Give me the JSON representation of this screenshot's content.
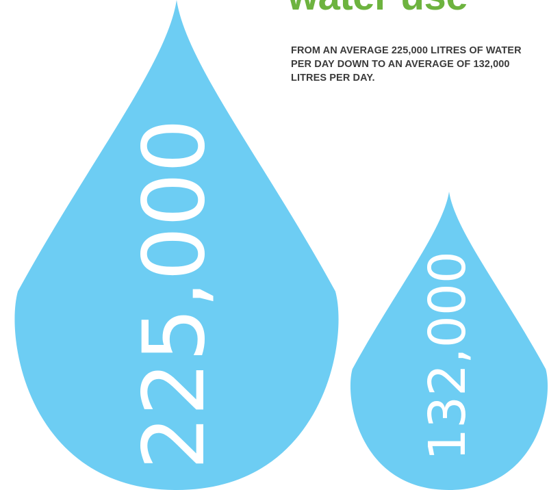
{
  "headline": "water use",
  "description": "FROM AN AVERAGE 225,000 LITRES OF WATER PER DAY DOWN TO AN AVERAGE OF 132,000 LITRES PER DAY.",
  "colors": {
    "drop": "#6dcdf3",
    "headline": "#6db33f",
    "label": "#ffffff",
    "description": "#3a3a3a"
  },
  "chart_data": {
    "type": "bar",
    "categories": [
      "225,000",
      "132,000"
    ],
    "values": [
      225000,
      132000
    ],
    "labels": [
      "225,000",
      "132,000"
    ],
    "title": "water use",
    "xlabel": "",
    "ylabel": ""
  }
}
